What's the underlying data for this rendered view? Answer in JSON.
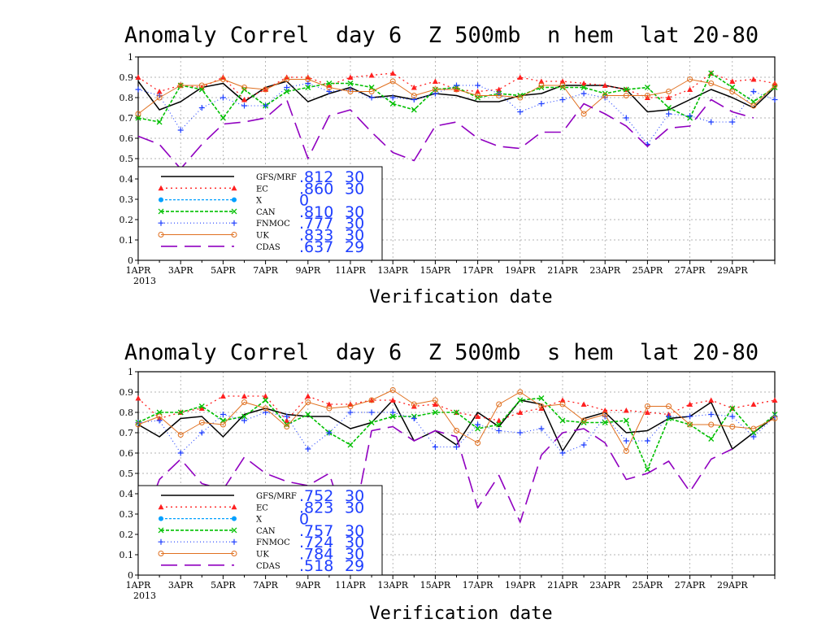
{
  "chart_data": [
    {
      "type": "line",
      "title": "Anomaly Correl  day 6  Z 500mb  n hem  lat 20-80",
      "xlabel": "Verification date",
      "ylabel": "",
      "ylim": [
        0,
        1
      ],
      "yticks": [
        "0",
        "0.1",
        "0.2",
        "0.3",
        "0.4",
        "0.5",
        "0.6",
        "0.7",
        "0.8",
        "0.9",
        "1"
      ],
      "xticks": [
        "1APR",
        "3APR",
        "5APR",
        "7APR",
        "9APR",
        "11APR",
        "13APR",
        "15APR",
        "17APR",
        "19APR",
        "21APR",
        "23APR",
        "25APR",
        "27APR",
        "29APR"
      ],
      "year_label": "2013",
      "grid": true,
      "legend_position": "bottom-left",
      "series": [
        {
          "name": "GFS/MRF",
          "mean": ".812",
          "count": "30",
          "color": "#000000",
          "values": [
            0.88,
            0.74,
            0.78,
            0.85,
            0.87,
            0.78,
            0.85,
            0.88,
            0.78,
            0.82,
            0.85,
            0.8,
            0.81,
            0.79,
            0.82,
            0.81,
            0.78,
            0.78,
            0.81,
            0.82,
            0.86,
            0.86,
            0.86,
            0.84,
            0.73,
            0.74,
            0.79,
            0.84,
            0.8,
            0.75,
            0.85
          ]
        },
        {
          "name": "EC",
          "mean": ".860",
          "count": "30",
          "color": "#ff2020",
          "values": [
            0.9,
            0.83,
            0.86,
            0.85,
            0.9,
            0.79,
            0.84,
            0.9,
            0.9,
            0.86,
            0.9,
            0.91,
            0.92,
            0.85,
            0.88,
            0.84,
            0.83,
            0.84,
            0.9,
            0.88,
            0.88,
            0.87,
            0.86,
            0.84,
            0.8,
            0.8,
            0.84,
            0.92,
            0.88,
            0.89,
            0.87
          ]
        },
        {
          "name": "X",
          "mean": "0",
          "count": "",
          "color": "#00a0ff",
          "values": []
        },
        {
          "name": "CAN",
          "mean": ".810",
          "count": "30",
          "color": "#00c000",
          "values": [
            0.7,
            0.68,
            0.86,
            0.84,
            0.7,
            0.84,
            0.76,
            0.83,
            0.85,
            0.87,
            0.87,
            0.85,
            0.77,
            0.74,
            0.84,
            0.85,
            0.8,
            0.82,
            0.81,
            0.85,
            0.85,
            0.85,
            0.82,
            0.84,
            0.85,
            0.75,
            0.7,
            0.92,
            0.85,
            0.78,
            0.85
          ]
        },
        {
          "name": "FNMOC",
          "mean": ".777",
          "count": "30",
          "color": "#1f3fff",
          "values": [
            0.84,
            0.81,
            0.64,
            0.75,
            0.8,
            0.76,
            0.76,
            0.85,
            0.87,
            0.83,
            0.84,
            0.8,
            0.8,
            0.79,
            0.82,
            0.86,
            0.86,
            0.82,
            0.73,
            0.77,
            0.79,
            0.82,
            0.8,
            0.7,
            0.57,
            0.72,
            0.71,
            0.68,
            0.68,
            0.83,
            0.79
          ]
        },
        {
          "name": "UK",
          "mean": ".833",
          "count": "30",
          "color": "#e07020",
          "values": [
            0.72,
            0.8,
            0.86,
            0.86,
            0.89,
            0.85,
            0.84,
            0.89,
            0.89,
            0.85,
            0.83,
            0.83,
            0.88,
            0.81,
            0.84,
            0.84,
            0.81,
            0.81,
            0.8,
            0.86,
            0.86,
            0.72,
            0.81,
            0.81,
            0.81,
            0.83,
            0.89,
            0.87,
            0.83,
            0.76,
            0.86
          ]
        },
        {
          "name": "CDAS",
          "mean": ".637",
          "count": "29",
          "color": "#9000c0",
          "values": [
            0.61,
            0.57,
            0.45,
            0.57,
            0.67,
            0.68,
            0.7,
            0.79,
            0.5,
            0.71,
            0.74,
            0.63,
            0.53,
            0.49,
            0.66,
            0.68,
            0.6,
            0.56,
            0.55,
            0.63,
            0.63,
            0.77,
            0.72,
            0.66,
            0.56,
            0.65,
            0.66,
            0.79,
            0.73,
            0.7,
            null
          ]
        }
      ]
    },
    {
      "type": "line",
      "title": "Anomaly Correl  day 6  Z 500mb  s hem  lat 20-80",
      "xlabel": "Verification date",
      "ylabel": "",
      "ylim": [
        0,
        1
      ],
      "yticks": [
        "0",
        "0.1",
        "0.2",
        "0.3",
        "0.4",
        "0.5",
        "0.6",
        "0.7",
        "0.8",
        "0.9",
        "1"
      ],
      "xticks": [
        "1APR",
        "3APR",
        "5APR",
        "7APR",
        "9APR",
        "11APR",
        "13APR",
        "15APR",
        "17APR",
        "19APR",
        "21APR",
        "23APR",
        "25APR",
        "27APR",
        "29APR"
      ],
      "year_label": "2013",
      "grid": true,
      "legend_position": "bottom-left",
      "series": [
        {
          "name": "GFS/MRF",
          "mean": ".752",
          "count": "30",
          "color": "#000000",
          "values": [
            0.74,
            0.68,
            0.77,
            0.78,
            0.68,
            0.79,
            0.82,
            0.79,
            0.78,
            0.78,
            0.72,
            0.75,
            0.86,
            0.66,
            0.71,
            0.64,
            0.8,
            0.73,
            0.86,
            0.84,
            0.61,
            0.77,
            0.8,
            0.7,
            0.71,
            0.77,
            0.78,
            0.85,
            0.62,
            0.7,
            0.78
          ]
        },
        {
          "name": "EC",
          "mean": ".823",
          "count": "30",
          "color": "#ff2020",
          "values": [
            0.87,
            0.77,
            0.8,
            0.82,
            0.88,
            0.88,
            0.88,
            0.76,
            0.88,
            0.84,
            0.84,
            0.86,
            0.86,
            0.83,
            0.84,
            0.8,
            0.78,
            0.76,
            0.8,
            0.82,
            0.86,
            0.84,
            0.81,
            0.81,
            0.8,
            0.79,
            0.84,
            0.86,
            0.82,
            0.84,
            0.86
          ]
        },
        {
          "name": "X",
          "mean": "0",
          "count": "",
          "color": "#00a0ff",
          "values": []
        },
        {
          "name": "CAN",
          "mean": ".757",
          "count": "30",
          "color": "#00c000",
          "values": [
            0.75,
            0.8,
            0.8,
            0.83,
            0.76,
            0.78,
            0.86,
            0.74,
            0.79,
            0.7,
            0.64,
            0.75,
            0.78,
            0.78,
            0.8,
            0.8,
            0.72,
            0.74,
            0.86,
            0.87,
            0.76,
            0.75,
            0.75,
            0.76,
            0.52,
            0.77,
            0.74,
            0.67,
            0.82,
            0.7,
            0.79
          ]
        },
        {
          "name": "FNMOC",
          "mean": ".724",
          "count": "30",
          "color": "#1f3fff",
          "values": [
            0.75,
            0.76,
            0.6,
            0.7,
            0.79,
            0.76,
            0.8,
            0.78,
            0.62,
            0.7,
            0.8,
            0.8,
            0.8,
            0.77,
            0.63,
            0.63,
            0.74,
            0.71,
            0.7,
            0.72,
            0.6,
            0.64,
            0.78,
            0.66,
            0.66,
            0.78,
            0.78,
            0.79,
            0.78,
            0.68,
            0.78
          ]
        },
        {
          "name": "UK",
          "mean": ".784",
          "count": "30",
          "color": "#e07020",
          "values": [
            0.74,
            0.78,
            0.69,
            0.75,
            0.74,
            0.85,
            0.82,
            0.73,
            0.85,
            0.82,
            0.83,
            0.86,
            0.91,
            0.84,
            0.86,
            0.71,
            0.65,
            0.84,
            0.9,
            0.83,
            0.84,
            0.76,
            0.79,
            0.61,
            0.83,
            0.83,
            0.74,
            0.74,
            0.73,
            0.72,
            0.77
          ]
        },
        {
          "name": "CDAS",
          "mean": ".518",
          "count": "29",
          "color": "#9000c0",
          "values": [
            0.2,
            0.47,
            0.57,
            0.45,
            0.42,
            0.58,
            0.5,
            0.46,
            0.44,
            0.5,
            0.18,
            0.71,
            0.73,
            0.66,
            0.71,
            0.68,
            0.33,
            0.49,
            0.26,
            0.59,
            0.7,
            0.72,
            0.65,
            0.47,
            0.5,
            0.56,
            0.41,
            0.57,
            0.62,
            null,
            null
          ]
        }
      ]
    }
  ]
}
